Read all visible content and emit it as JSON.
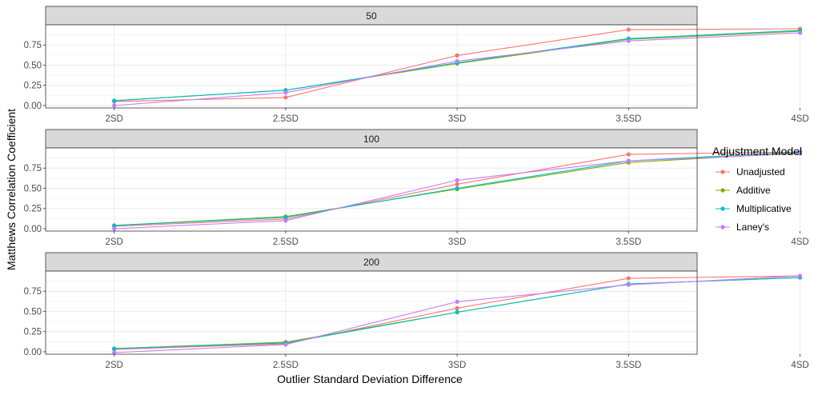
{
  "chart_data": {
    "type": "line",
    "xlabel": "Outlier Standard Deviation Difference",
    "ylabel": "Matthews Correlation Coefficient",
    "categories": [
      "2SD",
      "2.5SD",
      "3SD",
      "3.5SD",
      "4SD"
    ],
    "y_ticks": [
      "0.00",
      "0.25",
      "0.50",
      "0.75"
    ],
    "ylim": [
      -0.03,
      1.0
    ],
    "grid": true,
    "legend": {
      "title": "Adjustment Model",
      "position": "right",
      "entries": [
        "Unadjusted",
        "Additive",
        "Multiplicative",
        "Laney's"
      ]
    },
    "colors": {
      "Unadjusted": "#F8766D",
      "Additive": "#7CAE00",
      "Multiplicative": "#00BFC4",
      "Laney's": "#C77CFF",
      "strip": "#d9d9d9",
      "grid": "#ebebeb"
    },
    "panels": [
      {
        "label": "50",
        "series": [
          {
            "name": "Unadjusted",
            "values": [
              0.05,
              0.1,
              0.62,
              0.94,
              0.95
            ]
          },
          {
            "name": "Additive",
            "values": [
              0.06,
              0.19,
              0.52,
              0.82,
              0.92
            ]
          },
          {
            "name": "Multiplicative",
            "values": [
              0.06,
              0.19,
              0.53,
              0.83,
              0.93
            ]
          },
          {
            "name": "Laney's",
            "values": [
              0.0,
              0.16,
              0.55,
              0.8,
              0.9
            ]
          }
        ]
      },
      {
        "label": "100",
        "series": [
          {
            "name": "Unadjusted",
            "values": [
              0.03,
              0.12,
              0.55,
              0.92,
              0.95
            ]
          },
          {
            "name": "Additive",
            "values": [
              0.04,
              0.15,
              0.49,
              0.82,
              0.94
            ]
          },
          {
            "name": "Multiplicative",
            "values": [
              0.04,
              0.14,
              0.5,
              0.84,
              0.95
            ]
          },
          {
            "name": "Laney's",
            "values": [
              0.0,
              0.1,
              0.6,
              0.84,
              0.93
            ]
          }
        ]
      },
      {
        "label": "200",
        "series": [
          {
            "name": "Unadjusted",
            "values": [
              0.03,
              0.1,
              0.54,
              0.91,
              0.94
            ]
          },
          {
            "name": "Additive",
            "values": [
              0.04,
              0.12,
              0.49,
              0.84,
              0.92
            ]
          },
          {
            "name": "Multiplicative",
            "values": [
              0.04,
              0.11,
              0.49,
              0.84,
              0.92
            ]
          },
          {
            "name": "Laney's",
            "values": [
              -0.01,
              0.09,
              0.62,
              0.83,
              0.94
            ]
          }
        ]
      }
    ]
  }
}
